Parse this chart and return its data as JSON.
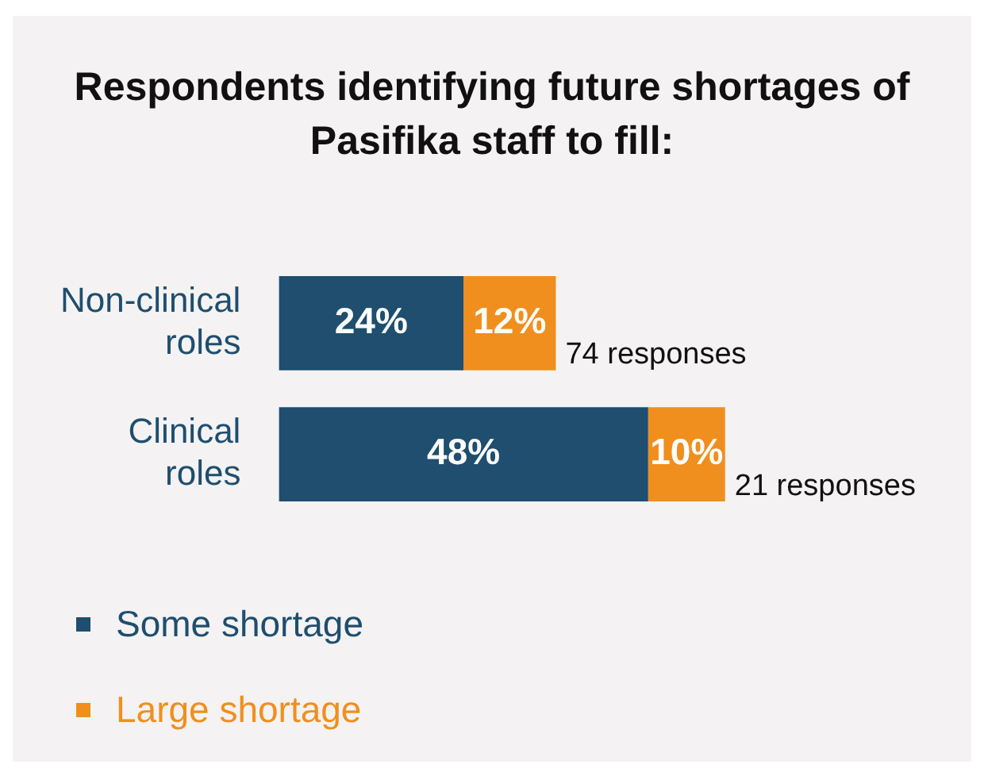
{
  "chart_data": {
    "type": "bar",
    "orientation": "horizontal",
    "stacked": true,
    "title": "Respondents identifying future shortages of Pasifika staff to fill:",
    "categories": [
      "Non-clinical roles",
      "Clinical roles"
    ],
    "series": [
      {
        "name": "Some shortage",
        "color": "#1f4e6e",
        "values": [
          24,
          48
        ],
        "value_labels": [
          "24%",
          "48%"
        ]
      },
      {
        "name": "Large shortage",
        "color": "#f08f1e",
        "values": [
          12,
          10
        ],
        "value_labels": [
          "12%",
          "10%"
        ]
      }
    ],
    "xlim": [
      0,
      90
    ],
    "tick_labels": "y",
    "legend": "bottom left",
    "annotations": [
      "74 responses",
      "21 responses"
    ]
  }
}
